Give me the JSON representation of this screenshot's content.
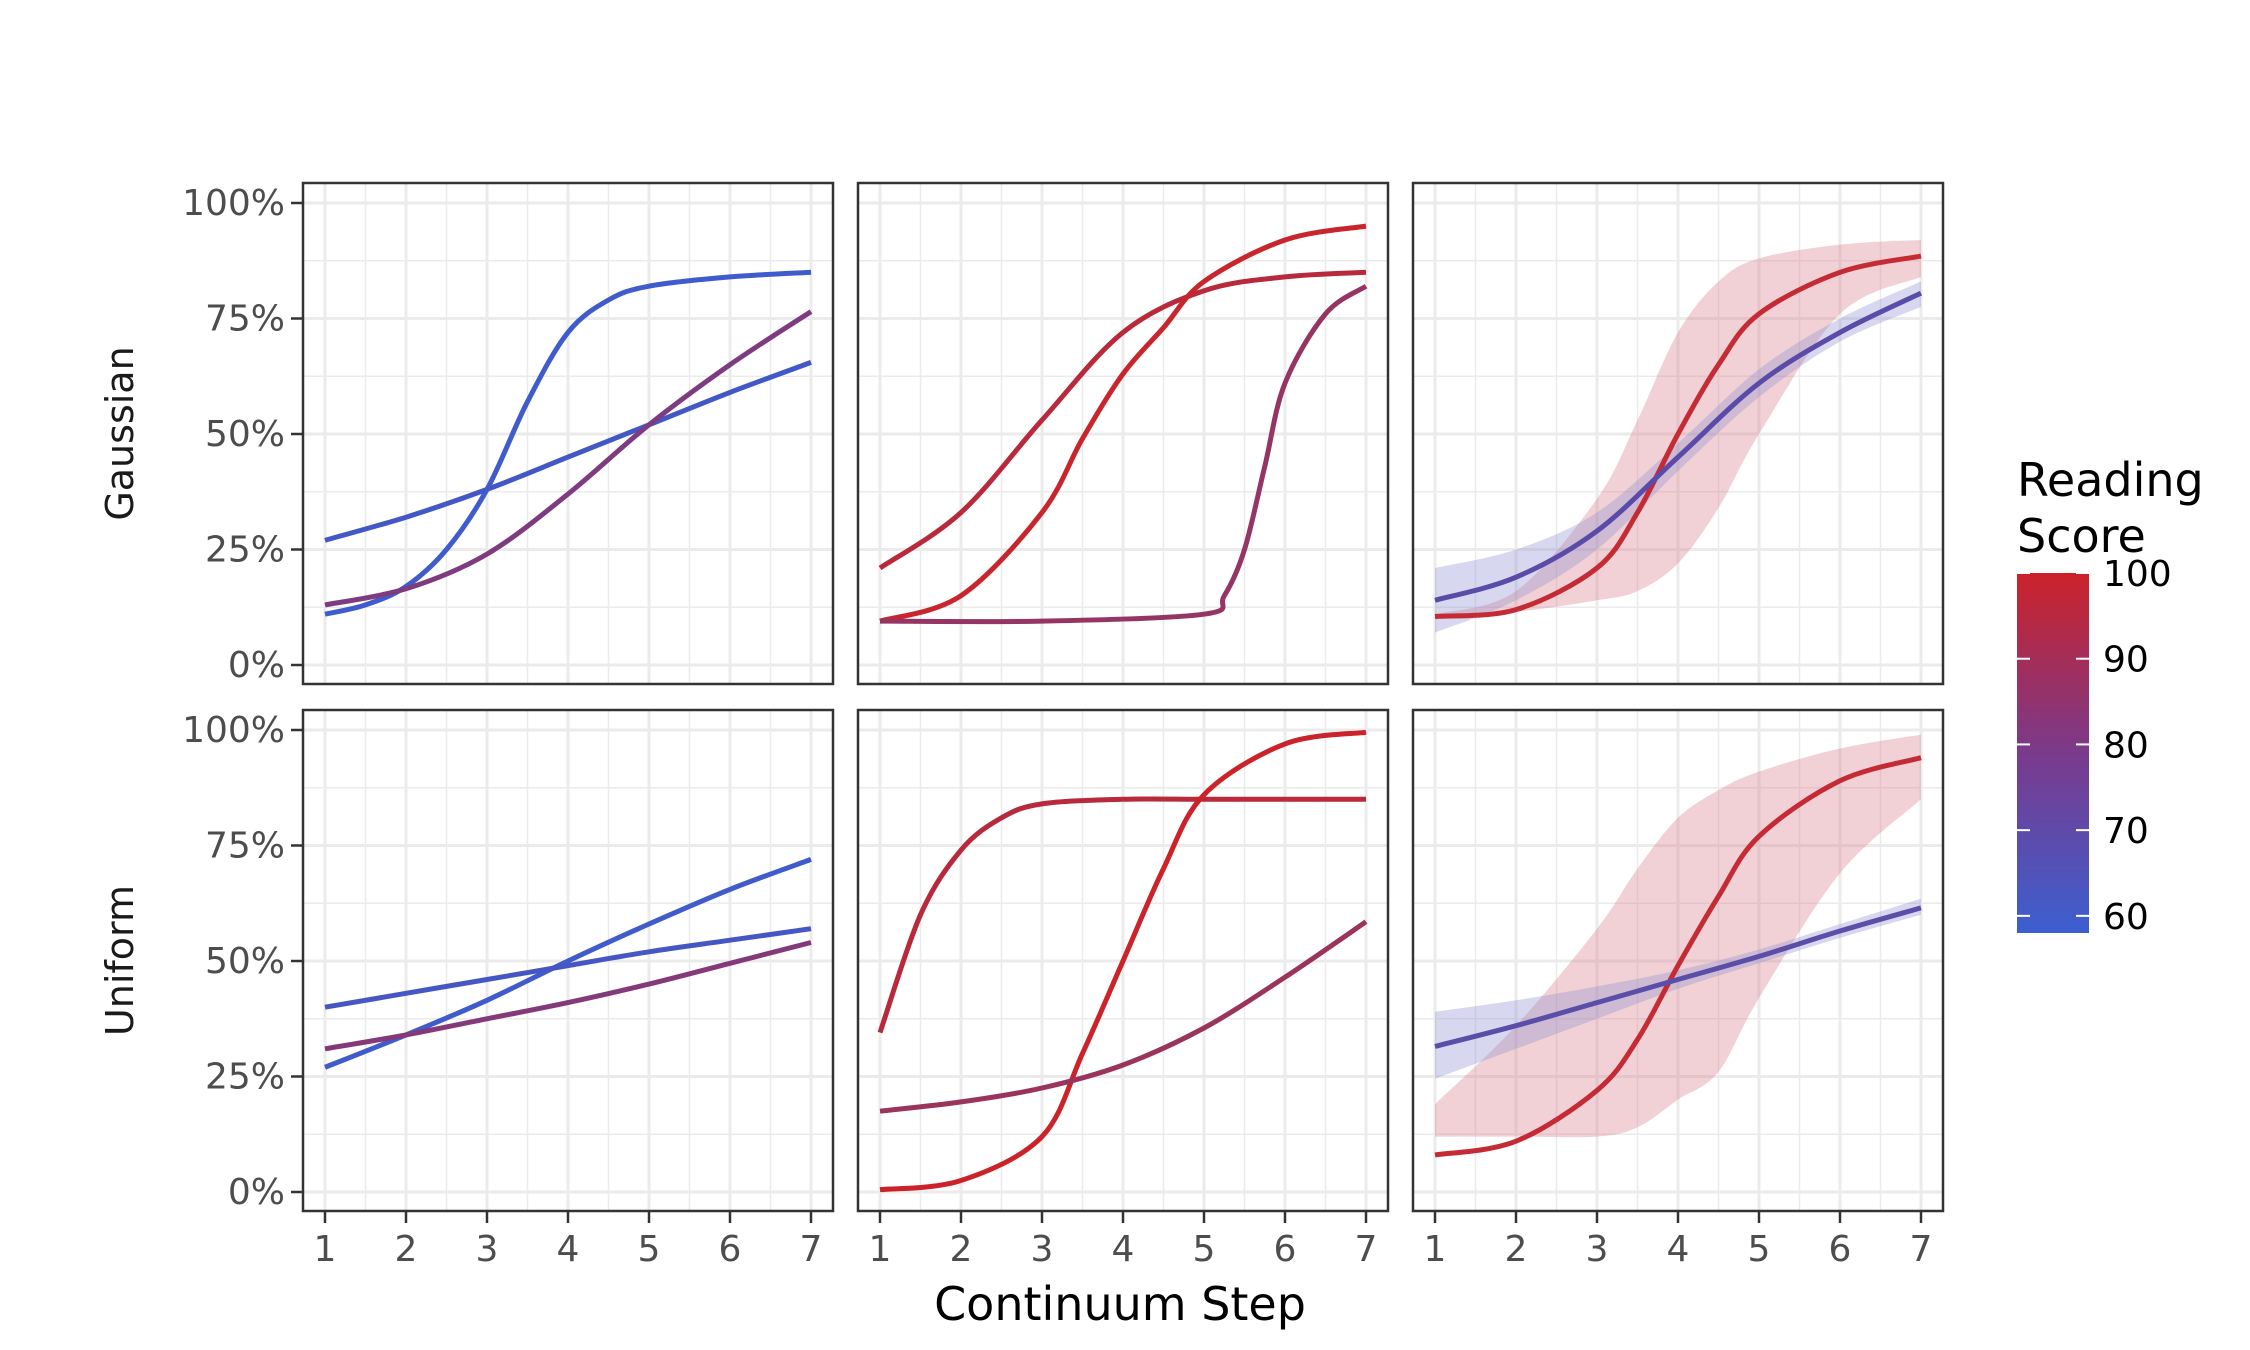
{
  "chart_data": {
    "type": "line",
    "xlabel": "Continuum Step",
    "x_ticks": [
      "1",
      "2",
      "3",
      "4",
      "5",
      "6",
      "7"
    ],
    "xlim": [
      1,
      7
    ],
    "y_ticks": [
      "0%",
      "25%",
      "50%",
      "75%",
      "100%"
    ],
    "ylim": [
      0,
      1
    ],
    "facet_rows": [
      "Gaussian",
      "Uniform"
    ],
    "legend": {
      "title": "Reading Score",
      "title_lines": [
        "Reading",
        "Score"
      ],
      "placement": "right",
      "labels": [
        "100",
        "90",
        "80",
        "70",
        "60"
      ],
      "values": [
        100,
        90,
        80,
        70,
        60
      ],
      "range": [
        58,
        100
      ],
      "colors": {
        "low": "#3c5fd0",
        "mid": "#7a3a8c",
        "high": "#cc2229"
      }
    },
    "grid": true,
    "panels": [
      {
        "row": "Gaussian",
        "col": 1,
        "series": [
          {
            "score": 61,
            "color": "#3f5bcc",
            "x": [
              1,
              1.5,
              2,
              2.5,
              3,
              3.5,
              4,
              4.5,
              5,
              6,
              7
            ],
            "y": [
              0.11,
              0.13,
              0.17,
              0.25,
              0.38,
              0.57,
              0.72,
              0.79,
              0.82,
              0.84,
              0.85
            ]
          },
          {
            "score": 62,
            "color": "#4258c6",
            "x": [
              1,
              2,
              3,
              4,
              5,
              6,
              7
            ],
            "y": [
              0.27,
              0.32,
              0.38,
              0.45,
              0.52,
              0.59,
              0.655
            ]
          },
          {
            "score": 82,
            "color": "#7f3b80",
            "x": [
              1,
              2,
              3,
              4,
              5,
              6,
              7
            ],
            "y": [
              0.13,
              0.165,
              0.24,
              0.37,
              0.52,
              0.65,
              0.765
            ]
          }
        ]
      },
      {
        "row": "Gaussian",
        "col": 2,
        "series": [
          {
            "score": 95,
            "color": "#b8293c",
            "x": [
              1,
              2,
              3,
              4,
              5,
              6,
              7
            ],
            "y": [
              0.21,
              0.33,
              0.53,
              0.72,
              0.81,
              0.84,
              0.85
            ]
          },
          {
            "score": 99,
            "color": "#c9252c",
            "x": [
              1,
              2,
              3,
              3.5,
              4,
              4.5,
              5,
              6,
              7
            ],
            "y": [
              0.095,
              0.15,
              0.33,
              0.49,
              0.63,
              0.73,
              0.83,
              0.92,
              0.95
            ]
          },
          {
            "score": 88,
            "color": "#953564",
            "x": [
              1,
              3,
              5,
              5.25,
              5.5,
              5.75,
              6,
              6.5,
              7
            ],
            "y": [
              0.095,
              0.095,
              0.11,
              0.15,
              0.25,
              0.43,
              0.61,
              0.76,
              0.82
            ]
          }
        ]
      },
      {
        "row": "Gaussian",
        "col": 3,
        "series": [
          {
            "score": 99,
            "color": "#c42b35",
            "x": [
              1,
              2,
              3,
              3.5,
              4,
              4.5,
              5,
              6,
              7
            ],
            "y": [
              0.105,
              0.12,
              0.21,
              0.33,
              0.5,
              0.65,
              0.76,
              0.85,
              0.885
            ],
            "band_lower": [
              0.105,
              0.115,
              0.14,
              0.16,
              0.22,
              0.34,
              0.5,
              0.76,
              0.84
            ],
            "band_upper": [
              0.11,
              0.16,
              0.36,
              0.53,
              0.72,
              0.83,
              0.88,
              0.91,
              0.92
            ],
            "band_color": "#d67c88"
          },
          {
            "score": 74,
            "color": "#5a4ba8",
            "x": [
              1,
              2,
              3,
              4,
              5,
              6,
              7
            ],
            "y": [
              0.14,
              0.19,
              0.29,
              0.45,
              0.61,
              0.72,
              0.805
            ],
            "band_lower": [
              0.07,
              0.14,
              0.25,
              0.42,
              0.58,
              0.7,
              0.775
            ],
            "band_upper": [
              0.21,
              0.25,
              0.33,
              0.48,
              0.64,
              0.75,
              0.83
            ],
            "band_color": "#8d8fd1"
          }
        ]
      },
      {
        "row": "Uniform",
        "col": 1,
        "series": [
          {
            "score": 61,
            "color": "#3f5bcc",
            "x": [
              1,
              2,
              3,
              4,
              5,
              6,
              7
            ],
            "y": [
              0.27,
              0.34,
              0.415,
              0.5,
              0.58,
              0.655,
              0.72
            ]
          },
          {
            "score": 63,
            "color": "#4657c4",
            "x": [
              1,
              2,
              3,
              4,
              5,
              6,
              7
            ],
            "y": [
              0.4,
              0.43,
              0.46,
              0.49,
              0.52,
              0.545,
              0.57
            ]
          },
          {
            "score": 83,
            "color": "#843a78",
            "x": [
              1,
              2,
              3,
              4,
              5,
              6,
              7
            ],
            "y": [
              0.31,
              0.34,
              0.375,
              0.41,
              0.45,
              0.495,
              0.54
            ]
          }
        ]
      },
      {
        "row": "Uniform",
        "col": 2,
        "series": [
          {
            "score": 95,
            "color": "#b8293c",
            "x": [
              1,
              1.5,
              2,
              2.5,
              3,
              4,
              5,
              6,
              7
            ],
            "y": [
              0.345,
              0.6,
              0.74,
              0.81,
              0.84,
              0.85,
              0.85,
              0.85,
              0.85
            ]
          },
          {
            "score": 100,
            "color": "#cc2229",
            "x": [
              1,
              2,
              3,
              3.5,
              4,
              4.5,
              5,
              6,
              7
            ],
            "y": [
              0.005,
              0.025,
              0.12,
              0.3,
              0.5,
              0.7,
              0.86,
              0.97,
              0.995
            ]
          },
          {
            "score": 89,
            "color": "#9b345a",
            "x": [
              1,
              2,
              3,
              4,
              5,
              6,
              7
            ],
            "y": [
              0.175,
              0.195,
              0.225,
              0.275,
              0.355,
              0.465,
              0.585
            ]
          }
        ]
      },
      {
        "row": "Uniform",
        "col": 3,
        "series": [
          {
            "score": 99,
            "color": "#c42b35",
            "x": [
              1,
              2,
              3,
              3.5,
              4,
              4.5,
              5,
              6,
              7
            ],
            "y": [
              0.08,
              0.11,
              0.22,
              0.33,
              0.49,
              0.64,
              0.77,
              0.89,
              0.94
            ],
            "band_lower": [
              0.12,
              0.12,
              0.12,
              0.14,
              0.2,
              0.26,
              0.42,
              0.69,
              0.85
            ],
            "band_upper": [
              0.19,
              0.36,
              0.57,
              0.7,
              0.81,
              0.87,
              0.91,
              0.96,
              0.99
            ],
            "band_color": "#d67c88"
          },
          {
            "score": 72,
            "color": "#5b4ea9",
            "x": [
              1,
              2,
              3,
              4,
              5,
              6,
              7
            ],
            "y": [
              0.315,
              0.36,
              0.41,
              0.46,
              0.51,
              0.565,
              0.615
            ],
            "band_lower": [
              0.245,
              0.31,
              0.375,
              0.44,
              0.495,
              0.55,
              0.6
            ],
            "band_upper": [
              0.39,
              0.415,
              0.445,
              0.48,
              0.525,
              0.58,
              0.635
            ],
            "band_color": "#8d8fd1"
          }
        ]
      }
    ]
  }
}
